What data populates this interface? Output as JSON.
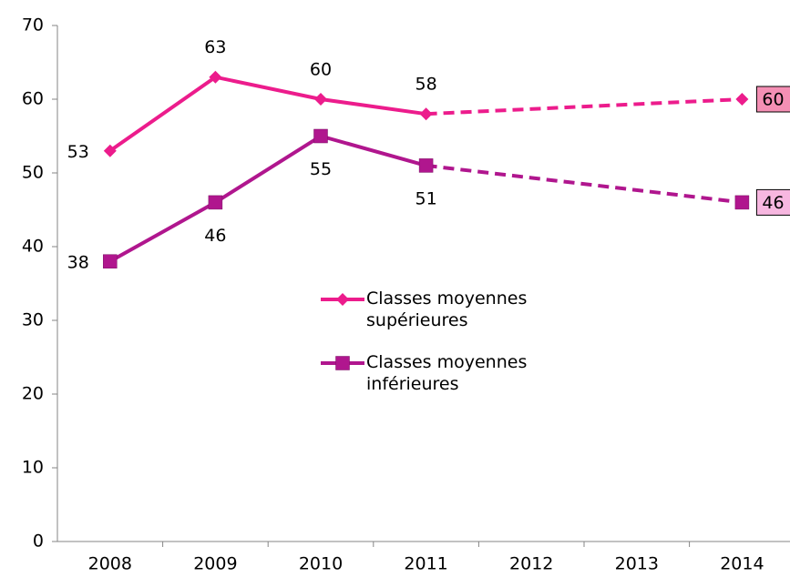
{
  "chart_data": {
    "type": "line",
    "categories": [
      "2008",
      "2009",
      "2010",
      "2011",
      "2012",
      "2013",
      "2014"
    ],
    "series": [
      {
        "name": "Classes moyennes supérieures",
        "color": "#ec1c8c",
        "marker": "diamond",
        "values": [
          53,
          63,
          60,
          58,
          null,
          null,
          60
        ]
      },
      {
        "name": "Classes moyennes inférieures",
        "color": "#b0168e",
        "marker": "square",
        "values": [
          38,
          46,
          55,
          51,
          null,
          null,
          46
        ]
      }
    ],
    "ylim": [
      0,
      70
    ],
    "yticks": [
      0,
      10,
      20,
      30,
      40,
      50,
      60,
      70
    ],
    "grid": false
  }
}
